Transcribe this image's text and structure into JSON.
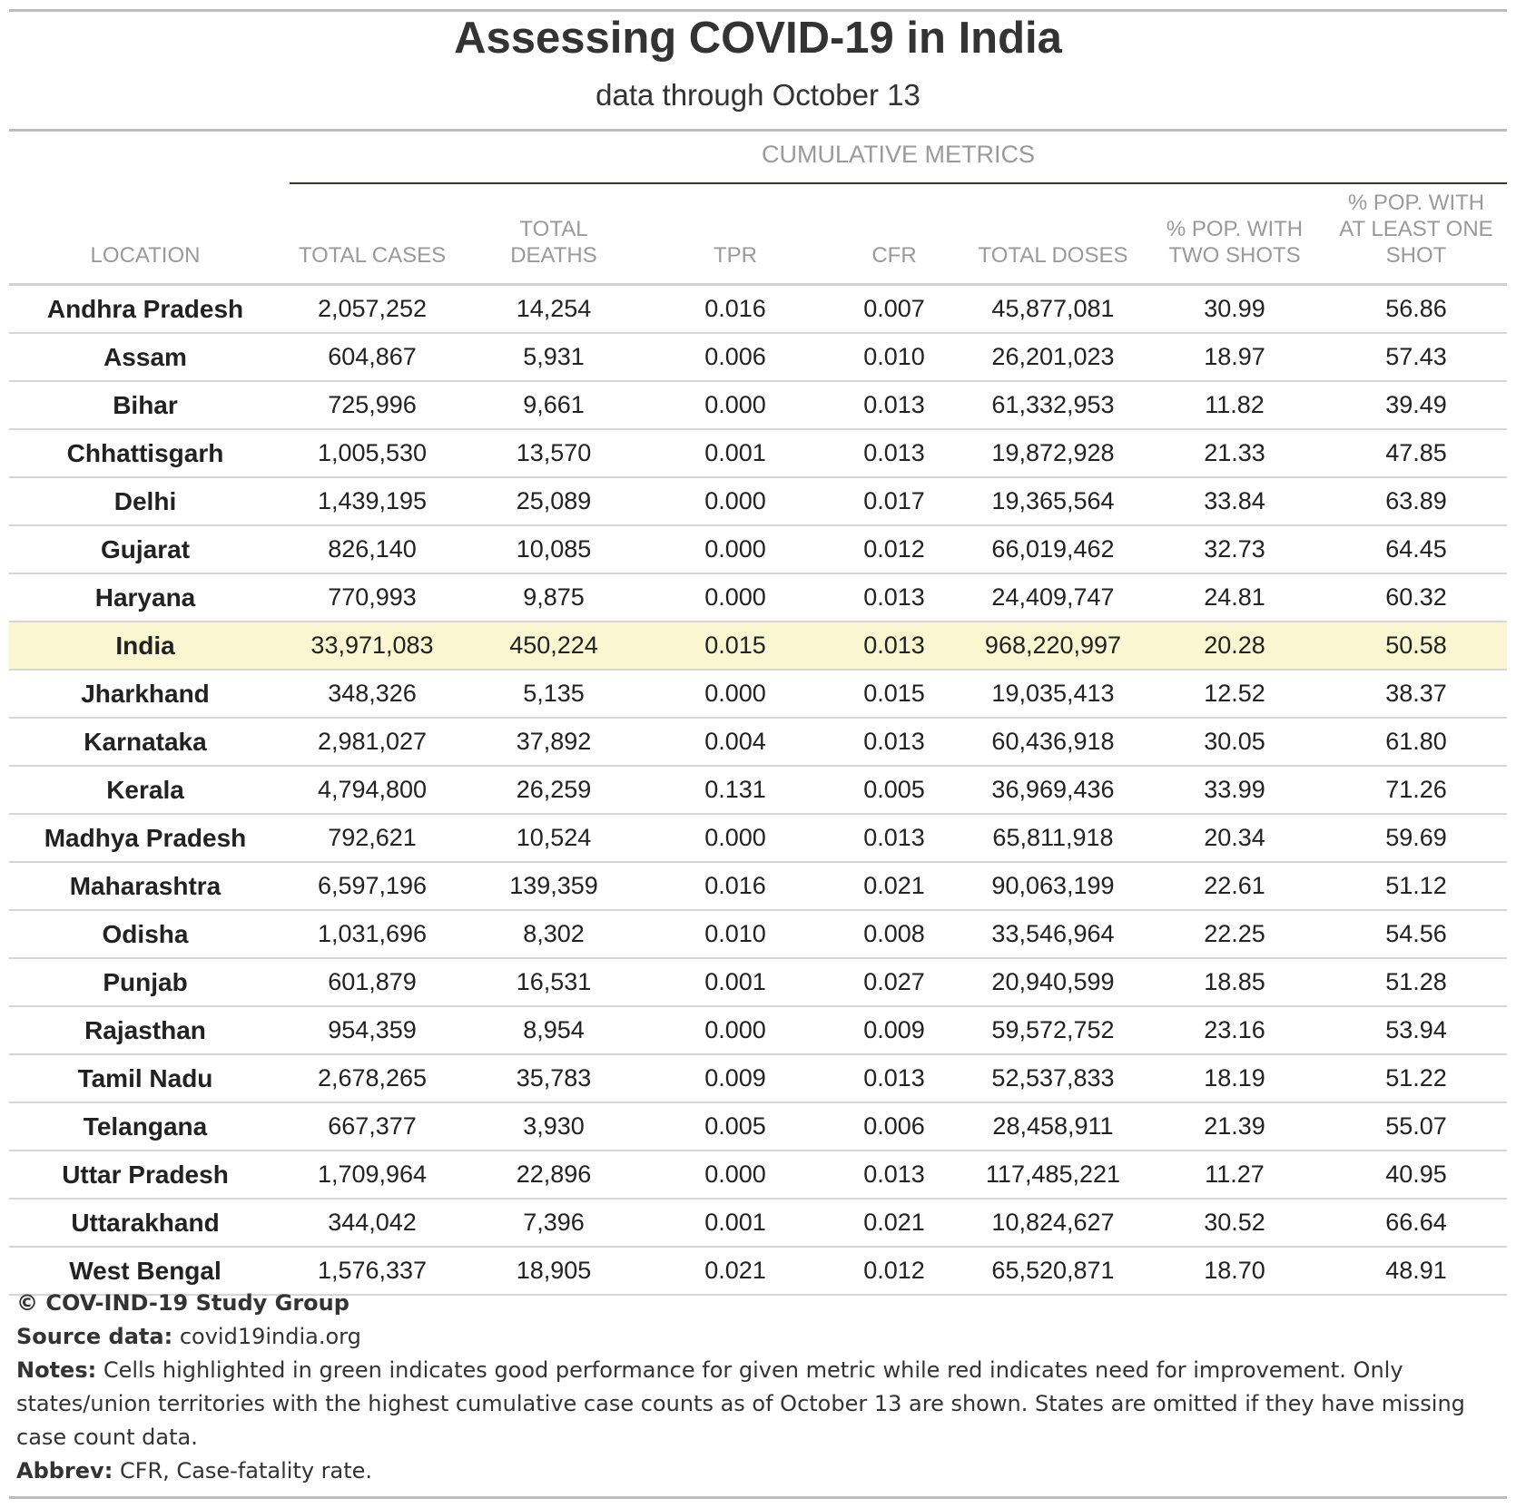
{
  "chart_data": {
    "type": "table",
    "title": "Assessing COVID-19 in India",
    "subtitle": "data through October 13",
    "spanner": "CUMULATIVE METRICS",
    "columns": [
      "LOCATION",
      "TOTAL CASES",
      "TOTAL DEATHS",
      "TPR",
      "CFR",
      "TOTAL DOSES",
      "% POP. WITH TWO SHOTS",
      "% POP. WITH AT LEAST ONE SHOT"
    ],
    "highlight_color": "#fbf6d2",
    "highlighted_row": "India",
    "rows": [
      [
        "Andhra Pradesh",
        "2,057,252",
        "14,254",
        "0.016",
        "0.007",
        "45,877,081",
        "30.99",
        "56.86"
      ],
      [
        "Assam",
        "604,867",
        "5,931",
        "0.006",
        "0.010",
        "26,201,023",
        "18.97",
        "57.43"
      ],
      [
        "Bihar",
        "725,996",
        "9,661",
        "0.000",
        "0.013",
        "61,332,953",
        "11.82",
        "39.49"
      ],
      [
        "Chhattisgarh",
        "1,005,530",
        "13,570",
        "0.001",
        "0.013",
        "19,872,928",
        "21.33",
        "47.85"
      ],
      [
        "Delhi",
        "1,439,195",
        "25,089",
        "0.000",
        "0.017",
        "19,365,564",
        "33.84",
        "63.89"
      ],
      [
        "Gujarat",
        "826,140",
        "10,085",
        "0.000",
        "0.012",
        "66,019,462",
        "32.73",
        "64.45"
      ],
      [
        "Haryana",
        "770,993",
        "9,875",
        "0.000",
        "0.013",
        "24,409,747",
        "24.81",
        "60.32"
      ],
      [
        "India",
        "33,971,083",
        "450,224",
        "0.015",
        "0.013",
        "968,220,997",
        "20.28",
        "50.58"
      ],
      [
        "Jharkhand",
        "348,326",
        "5,135",
        "0.000",
        "0.015",
        "19,035,413",
        "12.52",
        "38.37"
      ],
      [
        "Karnataka",
        "2,981,027",
        "37,892",
        "0.004",
        "0.013",
        "60,436,918",
        "30.05",
        "61.80"
      ],
      [
        "Kerala",
        "4,794,800",
        "26,259",
        "0.131",
        "0.005",
        "36,969,436",
        "33.99",
        "71.26"
      ],
      [
        "Madhya Pradesh",
        "792,621",
        "10,524",
        "0.000",
        "0.013",
        "65,811,918",
        "20.34",
        "59.69"
      ],
      [
        "Maharashtra",
        "6,597,196",
        "139,359",
        "0.016",
        "0.021",
        "90,063,199",
        "22.61",
        "51.12"
      ],
      [
        "Odisha",
        "1,031,696",
        "8,302",
        "0.010",
        "0.008",
        "33,546,964",
        "22.25",
        "54.56"
      ],
      [
        "Punjab",
        "601,879",
        "16,531",
        "0.001",
        "0.027",
        "20,940,599",
        "18.85",
        "51.28"
      ],
      [
        "Rajasthan",
        "954,359",
        "8,954",
        "0.000",
        "0.009",
        "59,572,752",
        "23.16",
        "53.94"
      ],
      [
        "Tamil Nadu",
        "2,678,265",
        "35,783",
        "0.009",
        "0.013",
        "52,537,833",
        "18.19",
        "51.22"
      ],
      [
        "Telangana",
        "667,377",
        "3,930",
        "0.005",
        "0.006",
        "28,458,911",
        "21.39",
        "55.07"
      ],
      [
        "Uttar Pradesh",
        "1,709,964",
        "22,896",
        "0.000",
        "0.013",
        "117,485,221",
        "11.27",
        "40.95"
      ],
      [
        "Uttarakhand",
        "344,042",
        "7,396",
        "0.001",
        "0.021",
        "10,824,627",
        "30.52",
        "66.64"
      ],
      [
        "West Bengal",
        "1,576,337",
        "18,905",
        "0.021",
        "0.012",
        "65,520,871",
        "18.70",
        "48.91"
      ]
    ]
  },
  "footer": {
    "copyright": "© COV-IND-19 Study Group",
    "source_label": "Source data:",
    "source_value": "covid19india.org",
    "notes_label": "Notes:",
    "notes_value": "Cells highlighted in green indicates good performance for given metric while red indicates need for improvement. Only states/union territories with the highest cumulative case counts as of October 13 are shown. States are omitted if they have missing case count data.",
    "abbrev_label": "Abbrev:",
    "abbrev_value": "CFR, Case-fatality rate."
  }
}
